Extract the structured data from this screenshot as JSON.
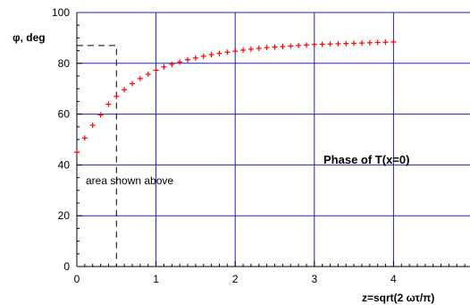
{
  "chart_data": {
    "type": "scatter",
    "title": "Phase of T(x=0)",
    "xlabel": "z=sqrt(2 ωτ/π)",
    "ylabel": "φ, deg",
    "xlim": [
      0,
      4.9
    ],
    "ylim": [
      0,
      100
    ],
    "x_ticks": [
      "0",
      "1",
      "2",
      "3",
      "4"
    ],
    "y_ticks": [
      "0",
      "20",
      "40",
      "60",
      "80",
      "100"
    ],
    "grid": true,
    "marker_color": "#ff0000",
    "grid_color": "#2020c0",
    "annotation": {
      "text": "area shown above",
      "box_x": [
        0,
        0.5
      ],
      "box_y": [
        0,
        87
      ]
    },
    "series": [
      {
        "points": [
          [
            0.0,
            45.0
          ],
          [
            0.1,
            50.6
          ],
          [
            0.2,
            55.6
          ],
          [
            0.3,
            59.7
          ],
          [
            0.4,
            63.9
          ],
          [
            0.5,
            67.0
          ],
          [
            0.6,
            69.6
          ],
          [
            0.7,
            72.0
          ],
          [
            0.8,
            74.0
          ],
          [
            0.9,
            75.7
          ],
          [
            1.0,
            77.3
          ],
          [
            1.1,
            78.6
          ],
          [
            1.2,
            79.6
          ],
          [
            1.3,
            80.5
          ],
          [
            1.4,
            81.4
          ],
          [
            1.5,
            82.1
          ],
          [
            1.6,
            82.8
          ],
          [
            1.7,
            83.4
          ],
          [
            1.8,
            83.9
          ],
          [
            1.9,
            84.4
          ],
          [
            2.0,
            84.8
          ],
          [
            2.1,
            85.2
          ],
          [
            2.2,
            85.6
          ],
          [
            2.3,
            85.9
          ],
          [
            2.4,
            86.2
          ],
          [
            2.5,
            86.4
          ],
          [
            2.6,
            86.6
          ],
          [
            2.7,
            86.8
          ],
          [
            2.8,
            87.0
          ],
          [
            2.9,
            87.2
          ],
          [
            3.0,
            87.4
          ],
          [
            3.1,
            87.5
          ],
          [
            3.2,
            87.6
          ],
          [
            3.3,
            87.7
          ],
          [
            3.4,
            87.8
          ],
          [
            3.5,
            87.9
          ],
          [
            3.6,
            88.0
          ],
          [
            3.7,
            88.1
          ],
          [
            3.8,
            88.2
          ],
          [
            3.9,
            88.3
          ],
          [
            4.0,
            88.4
          ]
        ]
      }
    ]
  }
}
